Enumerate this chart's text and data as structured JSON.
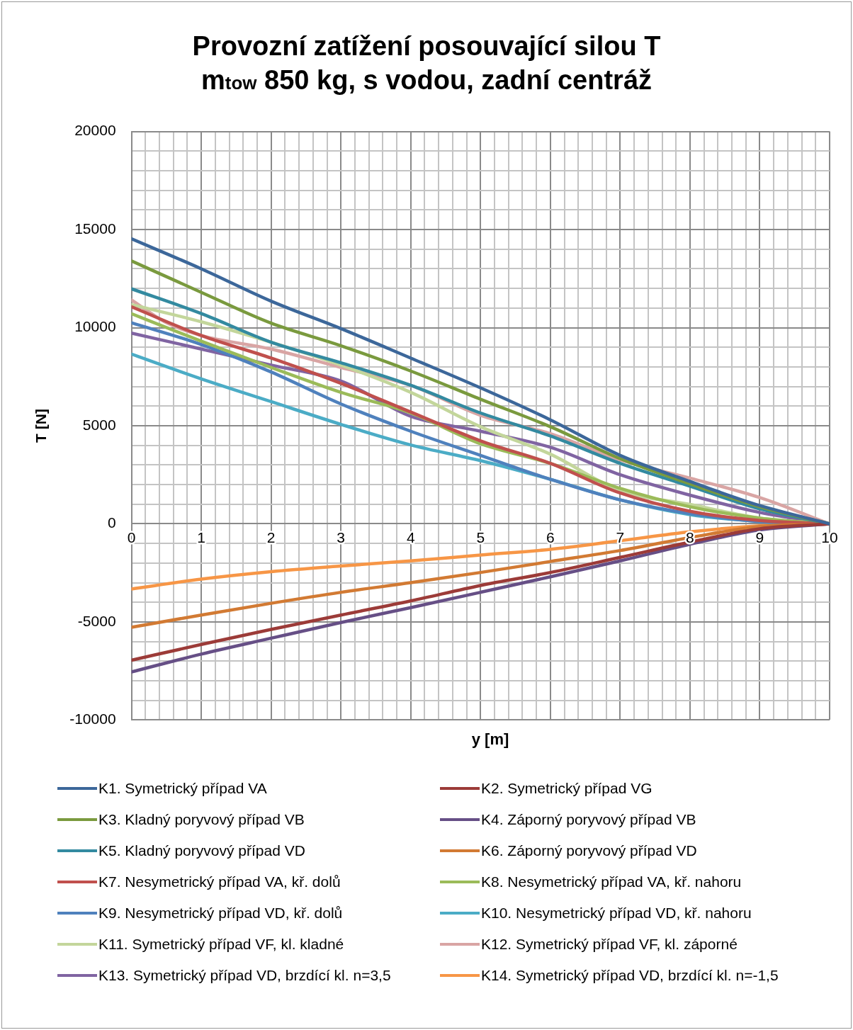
{
  "chart_data": {
    "type": "line",
    "title": "Provozní zatížení posouvající silou T\nm$_{tow}$ 850 kg, s vodou, zadní centráž",
    "xlabel": "y  [m]",
    "ylabel": "T [N]",
    "x": [
      0,
      1,
      2,
      3,
      4,
      5,
      6,
      7,
      8,
      9,
      10
    ],
    "xlim": [
      0,
      10
    ],
    "ylim": [
      -10000,
      20000
    ],
    "xticks": [
      0,
      {
        "value": 0.2,
        "label": null
      },
      {
        "value": 0.4,
        "label": null
      },
      {
        "value": 0.6,
        "label": null
      },
      {
        "value": 0.8,
        "label": null
      },
      1,
      {
        "value": 1.2,
        "label": null
      },
      {
        "value": 1.4,
        "label": null
      },
      {
        "value": 1.6,
        "label": null
      },
      {
        "value": 1.8,
        "label": null
      },
      2,
      {
        "value": 2.2,
        "label": null
      },
      {
        "value": 2.4,
        "label": null
      },
      {
        "value": 2.6,
        "label": null
      },
      {
        "value": 2.8,
        "label": null
      },
      3,
      {
        "value": 3.2,
        "label": null
      },
      {
        "value": 3.4,
        "label": null
      },
      {
        "value": 3.6,
        "label": null
      },
      {
        "value": 3.8,
        "label": null
      },
      4,
      {
        "value": 4.2,
        "label": null
      },
      {
        "value": 4.4,
        "label": null
      },
      {
        "value": 4.6,
        "label": null
      },
      {
        "value": 4.8,
        "label": null
      },
      5,
      {
        "value": 5.2,
        "label": null
      },
      {
        "value": 5.4,
        "label": null
      },
      {
        "value": 5.6,
        "label": null
      },
      {
        "value": 5.8,
        "label": null
      },
      6,
      {
        "value": 6.2,
        "label": null
      },
      {
        "value": 6.4,
        "label": null
      },
      {
        "value": 6.6,
        "label": null
      },
      {
        "value": 6.8,
        "label": null
      },
      7,
      {
        "value": 7.2,
        "label": null
      },
      {
        "value": 7.4,
        "label": null
      },
      {
        "value": 7.6,
        "label": null
      },
      {
        "value": 7.8,
        "label": null
      },
      8,
      {
        "value": 8.2,
        "label": null
      },
      {
        "value": 8.4,
        "label": null
      },
      {
        "value": 8.6,
        "label": null
      },
      {
        "value": 8.8,
        "label": null
      },
      9,
      {
        "value": 9.2,
        "label": null
      },
      {
        "value": 9.4,
        "label": null
      },
      {
        "value": 9.6,
        "label": null
      },
      {
        "value": 9.8,
        "label": null
      },
      10
    ],
    "yticks": [
      -10000,
      {
        "value": -9000,
        "label": null
      },
      {
        "value": -8000,
        "label": null
      },
      {
        "value": -7000,
        "label": null
      },
      {
        "value": -6000,
        "label": null
      },
      -5000,
      {
        "value": -4000,
        "label": null
      },
      {
        "value": -3000,
        "label": null
      },
      {
        "value": -2000,
        "label": null
      },
      {
        "value": -1000,
        "label": null
      },
      0,
      {
        "value": 1000,
        "label": null
      },
      {
        "value": 2000,
        "label": null
      },
      {
        "value": 3000,
        "label": null
      },
      {
        "value": 4000,
        "label": null
      },
      5000,
      {
        "value": 6000,
        "label": null
      },
      {
        "value": 7000,
        "label": null
      },
      {
        "value": 8000,
        "label": null
      },
      {
        "value": 9000,
        "label": null
      },
      10000,
      {
        "value": 11000,
        "label": null
      },
      {
        "value": 12000,
        "label": null
      },
      {
        "value": 13000,
        "label": null
      },
      {
        "value": 14000,
        "label": null
      },
      15000,
      {
        "value": 16000,
        "label": null
      },
      {
        "value": 17000,
        "label": null
      },
      {
        "value": 18000,
        "label": null
      },
      {
        "value": 19000,
        "label": null
      },
      20000
    ],
    "grid": true,
    "legend": "bottom",
    "marker": "none",
    "line_style": "solid",
    "series": [
      {
        "name": "K1. Symetrický případ VA",
        "color": "#3c679a",
        "values": [
          14530,
          13000,
          11350,
          9950,
          8450,
          6930,
          5300,
          3490,
          2160,
          930,
          0
        ]
      },
      {
        "name": "K2. Symetrický případ VG",
        "color": "#9c3b38",
        "values": [
          -6950,
          -6150,
          -5380,
          -4650,
          -3930,
          -3140,
          -2480,
          -1710,
          -930,
          -250,
          0
        ]
      },
      {
        "name": "K3. Kladný poryvový případ VB",
        "color": "#7a9a3e",
        "values": [
          13400,
          11800,
          10230,
          9080,
          7790,
          6350,
          4950,
          3320,
          2040,
          870,
          0
        ]
      },
      {
        "name": "K4. Záporný poryvový případ VB",
        "color": "#664f86",
        "values": [
          -7550,
          -6640,
          -5830,
          -5030,
          -4270,
          -3490,
          -2700,
          -1890,
          -1040,
          -310,
          0
        ]
      },
      {
        "name": "K5. Kladný poryvový případ VD",
        "color": "#338aa0",
        "values": [
          11980,
          10720,
          9260,
          8210,
          7060,
          5650,
          4480,
          3080,
          1920,
          760,
          0
        ]
      },
      {
        "name": "K6. Záporný poryvový případ VD",
        "color": "#d27a33",
        "values": [
          -5270,
          -4650,
          -4050,
          -3490,
          -3000,
          -2480,
          -1920,
          -1360,
          -700,
          -140,
          0
        ]
      },
      {
        "name": "K7. Nesymetrický případ VA, kř. dolů",
        "color": "#c0504d",
        "values": [
          11060,
          9600,
          8450,
          7160,
          5700,
          4230,
          3080,
          1570,
          640,
          170,
          0
        ]
      },
      {
        "name": "K8. Nesymetrický případ VA, kř. nahoru",
        "color": "#9bbb59",
        "values": [
          10710,
          9310,
          7970,
          6700,
          5650,
          4080,
          3080,
          1810,
          870,
          290,
          0
        ]
      },
      {
        "name": "K9. Nesymetrický případ VD, kř. dolů",
        "color": "#4f81bd",
        "values": [
          10250,
          9140,
          7740,
          6110,
          4720,
          3490,
          2270,
          1220,
          520,
          120,
          0
        ]
      },
      {
        "name": "K10. Nesymetrický případ VD, kř. nahoru",
        "color": "#4bacc6",
        "values": [
          8650,
          7390,
          6230,
          5070,
          4020,
          3220,
          2270,
          1220,
          470,
          120,
          0
        ]
      },
      {
        "name": "K11. Symetrický případ VF, kl. kladné",
        "color": "#c3d69b",
        "values": [
          11180,
          10300,
          9260,
          8090,
          6700,
          4950,
          3550,
          1690,
          990,
          290,
          0
        ]
      },
      {
        "name": "K12. Symetrický případ VF, kl. záporné",
        "color": "#d9a5a4",
        "x": [
          0,
          0.5,
          1,
          2,
          3,
          4,
          5,
          6,
          7,
          8,
          9,
          10
        ],
        "values": [
          11410,
          10250,
          9600,
          8910,
          7970,
          7050,
          5530,
          4600,
          3260,
          2330,
          1340,
          0
        ]
      },
      {
        "name": "K13. Symetrický případ VD, brzdící kl. n=3,5",
        "color": "#8064a2",
        "values": [
          9720,
          8910,
          8090,
          7280,
          5480,
          4720,
          3900,
          2500,
          1460,
          580,
          0
        ]
      },
      {
        "name": "K14. Symetrický případ VD, brzdící kl. n=-1,5",
        "color": "#f79646",
        "values": [
          -3320,
          -2820,
          -2440,
          -2150,
          -1890,
          -1590,
          -1300,
          -860,
          -410,
          -100,
          0
        ]
      }
    ]
  }
}
